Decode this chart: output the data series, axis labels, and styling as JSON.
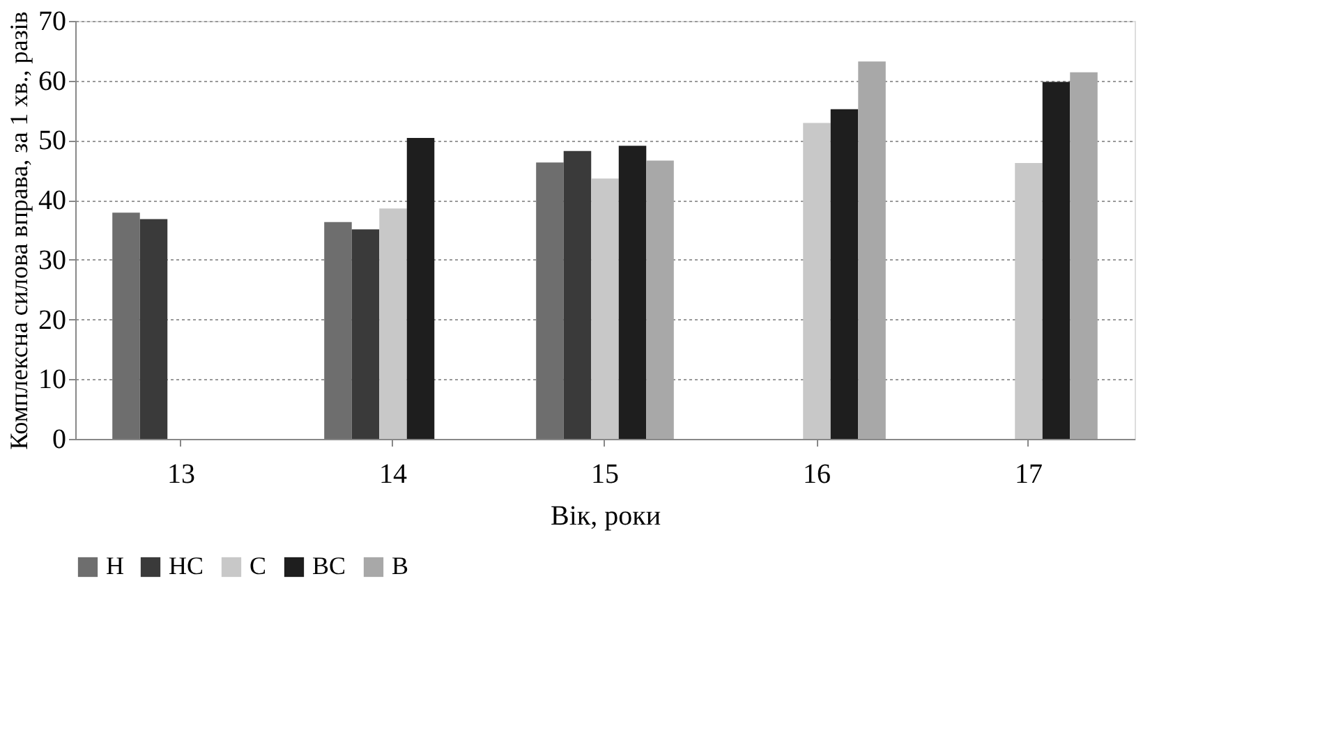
{
  "chart_data": {
    "type": "bar",
    "xlabel": "Вік, роки",
    "ylabel": "Комплексна силова вправа, за 1 хв., разів",
    "categories": [
      "13",
      "14",
      "15",
      "16",
      "17"
    ],
    "series": [
      {
        "name": "Н",
        "color": "#6e6e6e",
        "values": [
          37.9,
          36.3,
          46.3,
          null,
          null
        ]
      },
      {
        "name": "НС",
        "color": "#3a3a3a",
        "values": [
          36.8,
          35.1,
          48.2,
          null,
          null
        ]
      },
      {
        "name": "С",
        "color": "#c8c8c8",
        "values": [
          null,
          38.6,
          43.6,
          52.9,
          46.2
        ]
      },
      {
        "name": "ВС",
        "color": "#1e1e1e",
        "values": [
          null,
          50.4,
          49.1,
          55.2,
          59.8
        ]
      },
      {
        "name": "В",
        "color": "#a8a8a8",
        "values": [
          null,
          null,
          46.6,
          63.2,
          61.4
        ]
      }
    ],
    "ylim": [
      0,
      70
    ],
    "yticks": [
      0,
      10,
      20,
      30,
      40,
      50,
      60,
      70
    ],
    "grid": "y",
    "legend": "bottom"
  }
}
